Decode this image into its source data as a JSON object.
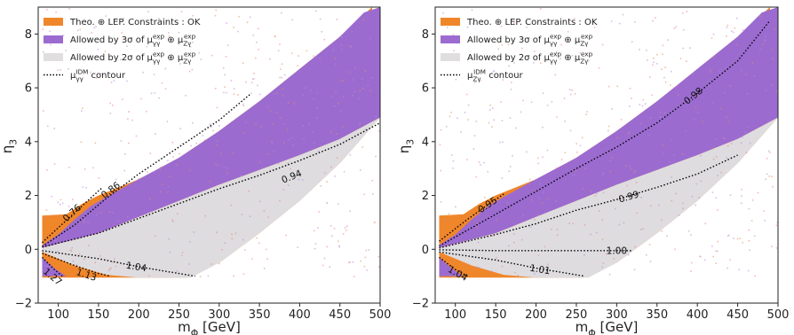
{
  "chart_data": [
    {
      "type": "area",
      "xlabel": "m_Φ [GeV]",
      "ylabel": "η_3",
      "xlim": [
        75,
        500
      ],
      "ylim": [
        -2,
        9
      ],
      "xticks": [
        "100",
        "150",
        "200",
        "250",
        "300",
        "350",
        "400",
        "450",
        "500"
      ],
      "yticks": [
        "−2",
        "0",
        "2",
        "4",
        "6",
        "8"
      ],
      "grid": false,
      "legend_placement": "top-left",
      "legend": [
        {
          "label": "Theo. ⊕ LEP. Constraints : OK",
          "color": "#f0862a",
          "kind": "patch"
        },
        {
          "label": "Allowed by 3σ of μ_γγ^exp ⊕ μ_Zγ^exp",
          "color": "#9b6bd0",
          "kind": "patch"
        },
        {
          "label": "Allowed by 2σ of μ_γγ^exp ⊕ μ_Zγ^exp",
          "color": "#e0dede",
          "kind": "patch"
        },
        {
          "label": "μ_γγ^IDM contour",
          "color": "#000000",
          "kind": "dotted"
        }
      ],
      "regions": {
        "orange_upper": [
          [
            80,
            1.25
          ],
          [
            110,
            1.3
          ],
          [
            130,
            1.7
          ],
          [
            150,
            2.0
          ],
          [
            200,
            2.6
          ],
          [
            250,
            3.4
          ],
          [
            300,
            4.4
          ],
          [
            350,
            5.5
          ],
          [
            400,
            6.7
          ],
          [
            450,
            7.9
          ],
          [
            490,
            9.0
          ]
        ],
        "orange_lower": [
          [
            80,
            -1.05
          ],
          [
            260,
            -1.05
          ],
          [
            300,
            -0.5
          ],
          [
            350,
            0.6
          ],
          [
            400,
            1.8
          ],
          [
            450,
            3.2
          ],
          [
            500,
            4.9
          ]
        ],
        "purple_upper": [
          [
            80,
            0.15
          ],
          [
            100,
            0.55
          ],
          [
            120,
            1.1
          ],
          [
            140,
            1.6
          ],
          [
            160,
            1.95
          ],
          [
            200,
            2.6
          ],
          [
            250,
            3.4
          ],
          [
            300,
            4.4
          ],
          [
            350,
            5.5
          ],
          [
            400,
            6.7
          ],
          [
            450,
            7.9
          ],
          [
            480,
            8.8
          ],
          [
            500,
            9.0
          ]
        ],
        "purple_lower": [
          [
            80,
            0.05
          ],
          [
            150,
            0.6
          ],
          [
            200,
            1.2
          ],
          [
            250,
            1.8
          ],
          [
            300,
            2.4
          ],
          [
            350,
            2.95
          ],
          [
            400,
            3.5
          ],
          [
            450,
            4.1
          ],
          [
            500,
            4.9
          ]
        ],
        "grey_upper": [
          [
            80,
            0.05
          ],
          [
            150,
            0.6
          ],
          [
            200,
            1.2
          ],
          [
            250,
            1.8
          ],
          [
            300,
            2.4
          ],
          [
            350,
            2.95
          ],
          [
            400,
            3.5
          ],
          [
            450,
            4.1
          ],
          [
            500,
            4.9
          ]
        ],
        "grey_lower": [
          [
            80,
            -0.1
          ],
          [
            120,
            -0.6
          ],
          [
            160,
            -0.95
          ],
          [
            200,
            -1.05
          ],
          [
            265,
            -1.05
          ],
          [
            300,
            -0.5
          ],
          [
            350,
            0.6
          ],
          [
            400,
            1.8
          ],
          [
            450,
            3.2
          ],
          [
            500,
            4.9
          ]
        ],
        "purple_wedge": [
          [
            80,
            -0.3
          ],
          [
            95,
            -0.7
          ],
          [
            110,
            -1.0
          ],
          [
            80,
            -1.0
          ]
        ]
      },
      "contours": [
        {
          "label": "0.76",
          "label_at": [
            117,
            1.35
          ],
          "points": [
            [
              80,
              0.25
            ],
            [
              100,
              0.8
            ],
            [
              120,
              1.35
            ],
            [
              140,
              1.9
            ],
            [
              155,
              2.3
            ]
          ]
        },
        {
          "label": "0.86",
          "label_at": [
            165,
            2.2
          ],
          "points": [
            [
              80,
              0.1
            ],
            [
              120,
              0.9
            ],
            [
              160,
              1.9
            ],
            [
              200,
              2.8
            ],
            [
              250,
              3.8
            ],
            [
              300,
              4.8
            ],
            [
              340,
              5.8
            ]
          ]
        },
        {
          "label": "0.94",
          "label_at": [
            390,
            2.7
          ],
          "points": [
            [
              80,
              0.08
            ],
            [
              150,
              0.6
            ],
            [
              200,
              1.15
            ],
            [
              250,
              1.7
            ],
            [
              300,
              2.25
            ],
            [
              350,
              2.75
            ],
            [
              400,
              3.3
            ],
            [
              450,
              3.9
            ],
            [
              500,
              4.7
            ]
          ]
        },
        {
          "label": "1.04",
          "label_at": [
            197,
            -0.65
          ],
          "points": [
            [
              80,
              -0.05
            ],
            [
              150,
              -0.35
            ],
            [
              200,
              -0.65
            ],
            [
              250,
              -0.9
            ],
            [
              270,
              -1.0
            ]
          ]
        },
        {
          "label": "1.13",
          "label_at": [
            135,
            -0.95
          ],
          "points": [
            [
              80,
              -0.15
            ],
            [
              120,
              -0.6
            ],
            [
              150,
              -0.9
            ],
            [
              165,
              -1.0
            ]
          ]
        },
        {
          "label": "1.27",
          "label_at": [
            93,
            -1.02
          ],
          "points": [
            [
              80,
              -0.3
            ],
            [
              95,
              -0.75
            ],
            [
              105,
              -1.0
            ]
          ]
        }
      ]
    },
    {
      "type": "area",
      "xlabel": "m_Φ [GeV]",
      "ylabel": "η_3",
      "xlim": [
        75,
        500
      ],
      "ylim": [
        -2,
        9
      ],
      "xticks": [
        "100",
        "150",
        "200",
        "250",
        "300",
        "350",
        "400",
        "450",
        "500"
      ],
      "yticks": [
        "−2",
        "0",
        "2",
        "4",
        "6",
        "8"
      ],
      "grid": false,
      "legend_placement": "top-left",
      "legend": [
        {
          "label": "Theo. ⊕ LEP. Constraints : OK",
          "color": "#f0862a",
          "kind": "patch"
        },
        {
          "label": "Allowed by 3σ of μ_γγ^exp ⊕ μ_Zγ^exp",
          "color": "#9b6bd0",
          "kind": "patch"
        },
        {
          "label": "Allowed by 2σ of μ_γγ^exp ⊕ μ_Zγ^exp",
          "color": "#e0dede",
          "kind": "patch"
        },
        {
          "label": "μ_Zγ^IDM contour",
          "color": "#000000",
          "kind": "dotted"
        }
      ],
      "regions": {
        "orange_upper": [
          [
            80,
            1.25
          ],
          [
            110,
            1.3
          ],
          [
            130,
            1.7
          ],
          [
            150,
            2.0
          ],
          [
            200,
            2.6
          ],
          [
            250,
            3.4
          ],
          [
            300,
            4.4
          ],
          [
            350,
            5.5
          ],
          [
            400,
            6.7
          ],
          [
            450,
            7.9
          ],
          [
            490,
            9.0
          ]
        ],
        "orange_lower": [
          [
            80,
            -1.05
          ],
          [
            260,
            -1.05
          ],
          [
            300,
            -0.5
          ],
          [
            350,
            0.6
          ],
          [
            400,
            1.8
          ],
          [
            450,
            3.2
          ],
          [
            500,
            4.9
          ]
        ],
        "purple_upper": [
          [
            80,
            0.15
          ],
          [
            100,
            0.55
          ],
          [
            120,
            1.1
          ],
          [
            140,
            1.6
          ],
          [
            160,
            1.95
          ],
          [
            200,
            2.6
          ],
          [
            250,
            3.4
          ],
          [
            300,
            4.4
          ],
          [
            350,
            5.5
          ],
          [
            400,
            6.7
          ],
          [
            450,
            7.9
          ],
          [
            480,
            8.8
          ],
          [
            500,
            9.0
          ]
        ],
        "purple_lower": [
          [
            80,
            0.05
          ],
          [
            150,
            0.6
          ],
          [
            200,
            1.2
          ],
          [
            250,
            1.8
          ],
          [
            300,
            2.4
          ],
          [
            350,
            2.95
          ],
          [
            400,
            3.5
          ],
          [
            450,
            4.1
          ],
          [
            500,
            4.9
          ]
        ],
        "grey_upper": [
          [
            80,
            0.05
          ],
          [
            150,
            0.6
          ],
          [
            200,
            1.2
          ],
          [
            250,
            1.8
          ],
          [
            300,
            2.4
          ],
          [
            350,
            2.95
          ],
          [
            400,
            3.5
          ],
          [
            450,
            4.1
          ],
          [
            500,
            4.9
          ]
        ],
        "grey_lower": [
          [
            80,
            -0.1
          ],
          [
            120,
            -0.6
          ],
          [
            160,
            -0.95
          ],
          [
            200,
            -1.05
          ],
          [
            265,
            -1.05
          ],
          [
            300,
            -0.5
          ],
          [
            350,
            0.6
          ],
          [
            400,
            1.8
          ],
          [
            450,
            3.2
          ],
          [
            500,
            4.9
          ]
        ],
        "purple_wedge": [
          [
            80,
            -0.3
          ],
          [
            95,
            -0.7
          ],
          [
            110,
            -1.0
          ],
          [
            80,
            -1.0
          ]
        ]
      },
      "contours": [
        {
          "label": "0.95",
          "label_at": [
            140,
            1.65
          ],
          "points": [
            [
              80,
              0.3
            ],
            [
              110,
              1.0
            ],
            [
              140,
              1.65
            ],
            [
              160,
              2.05
            ]
          ]
        },
        {
          "label": "0.98",
          "label_at": [
            395,
            5.7
          ],
          "points": [
            [
              80,
              0.12
            ],
            [
              150,
              1.3
            ],
            [
              200,
              2.15
            ],
            [
              250,
              3.0
            ],
            [
              300,
              3.8
            ],
            [
              350,
              4.7
            ],
            [
              400,
              5.8
            ],
            [
              450,
              7.0
            ],
            [
              490,
              8.5
            ]
          ]
        },
        {
          "label": "0.99",
          "label_at": [
            315,
            1.95
          ],
          "points": [
            [
              80,
              0.05
            ],
            [
              150,
              0.55
            ],
            [
              200,
              0.95
            ],
            [
              250,
              1.45
            ],
            [
              300,
              1.85
            ],
            [
              350,
              2.3
            ],
            [
              400,
              2.8
            ],
            [
              450,
              3.5
            ]
          ]
        },
        {
          "label": "1.00",
          "label_at": [
            300,
            -0.05
          ],
          "points": [
            [
              80,
              -0.02
            ],
            [
              150,
              -0.05
            ],
            [
              200,
              -0.05
            ],
            [
              250,
              -0.05
            ],
            [
              320,
              -0.05
            ]
          ]
        },
        {
          "label": "1.01",
          "label_at": [
            205,
            -0.75
          ],
          "points": [
            [
              80,
              -0.1
            ],
            [
              150,
              -0.4
            ],
            [
              200,
              -0.7
            ],
            [
              250,
              -0.95
            ],
            [
              260,
              -1.0
            ]
          ]
        },
        {
          "label": "1.04",
          "label_at": [
            103,
            -0.9
          ],
          "points": [
            [
              80,
              -0.3
            ],
            [
              100,
              -0.75
            ],
            [
              115,
              -1.0
            ]
          ]
        }
      ]
    }
  ]
}
